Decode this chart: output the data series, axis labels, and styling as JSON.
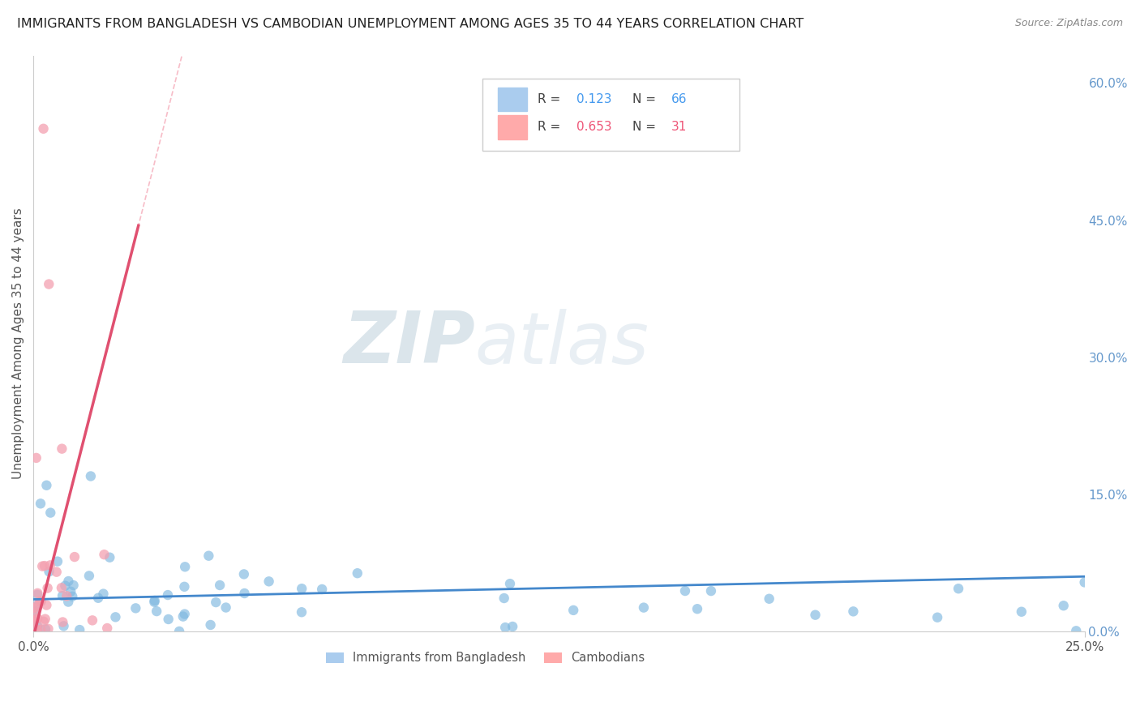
{
  "title": "IMMIGRANTS FROM BANGLADESH VS CAMBODIAN UNEMPLOYMENT AMONG AGES 35 TO 44 YEARS CORRELATION CHART",
  "source": "Source: ZipAtlas.com",
  "ylabel": "Unemployment Among Ages 35 to 44 years",
  "xlim": [
    0.0,
    0.25
  ],
  "ylim": [
    0.0,
    0.63
  ],
  "xtick_vals": [
    0.0,
    0.25
  ],
  "xtick_labels": [
    "0.0%",
    "25.0%"
  ],
  "ytick_vals": [
    0.0,
    0.15,
    0.3,
    0.45,
    0.6
  ],
  "ytick_labels": [
    "0.0%",
    "15.0%",
    "30.0%",
    "45.0%",
    "60.0%"
  ],
  "series1_color": "#7fb8e0",
  "series1_label": "Immigrants from Bangladesh",
  "series2_color": "#f4a0b0",
  "series2_label": "Cambodians",
  "watermark_zip": "ZIP",
  "watermark_atlas": "atlas",
  "watermark_color": "#d0dde8",
  "background_color": "#ffffff",
  "grid_color": "#dddddd",
  "title_color": "#222222",
  "source_color": "#888888",
  "ylabel_color": "#555555",
  "tick_color_x": "#555555",
  "tick_color_y": "#6699cc",
  "legend_border_color": "#cccccc",
  "legend_r_color1": "#4499ee",
  "legend_r_color2": "#ee5577",
  "legend_n_color1": "#4499ee",
  "legend_n_color2": "#ee5577"
}
